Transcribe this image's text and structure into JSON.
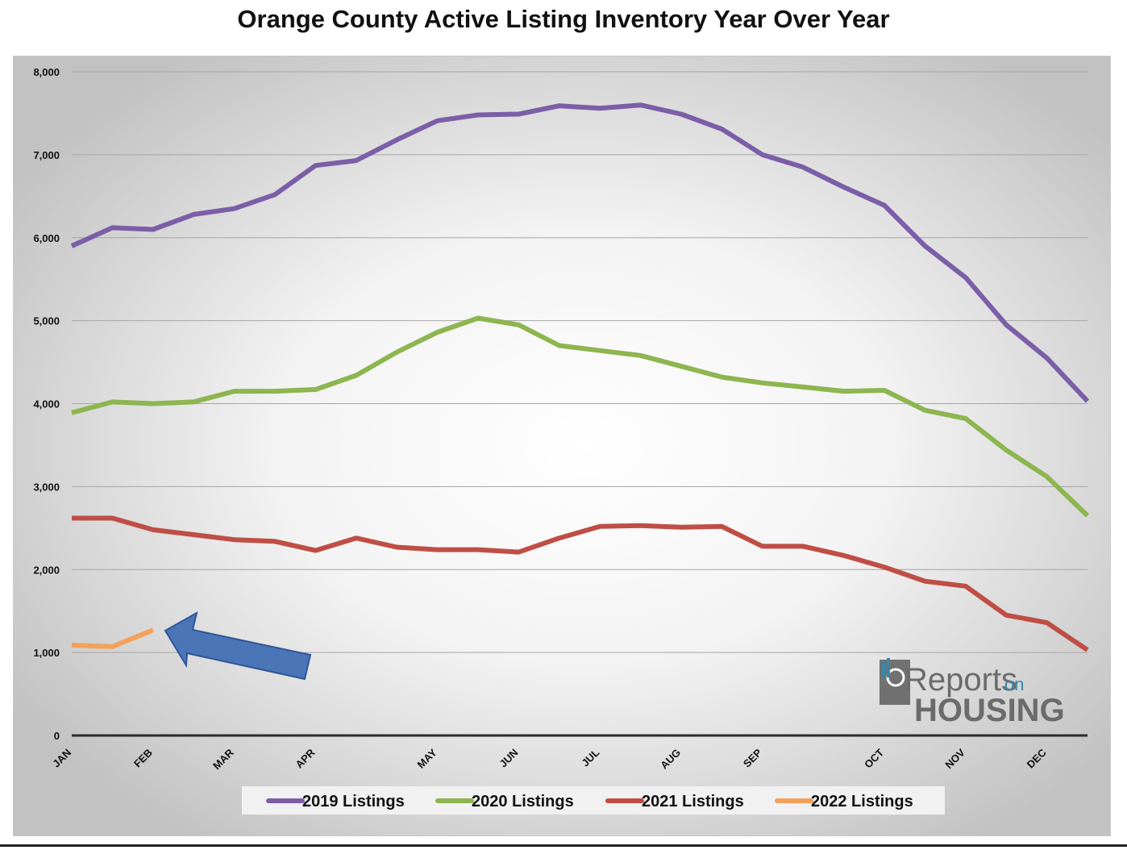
{
  "chart_data": {
    "type": "line",
    "title": "Orange County Active Listing Inventory Year Over Year",
    "xlabel": "",
    "ylabel": "",
    "ylim": [
      0,
      8000
    ],
    "yticks": [
      0,
      1000,
      2000,
      3000,
      4000,
      5000,
      6000,
      7000,
      8000
    ],
    "ytick_labels": [
      "0",
      "1,000",
      "2,000",
      "3,000",
      "4,000",
      "5,000",
      "6,000",
      "7,000",
      "8,000"
    ],
    "month_labels": [
      "JAN",
      "FEB",
      "MAR",
      "APR",
      "MAY",
      "JUN",
      "JUL",
      "AUG",
      "SEP",
      "OCT",
      "NOV",
      "DEC"
    ],
    "month_label_week_index": [
      0,
      2,
      4,
      6,
      9,
      11,
      13,
      15,
      17,
      20,
      22,
      24
    ],
    "x_weeks": [
      0,
      1,
      2,
      3,
      4,
      5,
      6,
      7,
      8,
      9,
      10,
      11,
      12,
      13,
      14,
      15,
      16,
      17,
      18,
      19,
      20,
      21,
      22,
      23,
      24,
      25
    ],
    "grid": true,
    "legend_position": "bottom",
    "series": [
      {
        "name": "2019 Listings",
        "color": "#7b5ea7",
        "values": [
          5900,
          6120,
          6100,
          6280,
          6350,
          6520,
          6870,
          6930,
          7180,
          7410,
          7480,
          7490,
          7590,
          7560,
          7600,
          7490,
          7310,
          7000,
          6850,
          6610,
          6390,
          5900,
          5520,
          4950,
          4550,
          4030
        ]
      },
      {
        "name": "2020 Listings",
        "color": "#8db550",
        "values": [
          3890,
          4020,
          4000,
          4020,
          4150,
          4150,
          4170,
          4340,
          4620,
          4860,
          5030,
          4950,
          4700,
          4640,
          4580,
          4450,
          4320,
          4250,
          4200,
          4150,
          4160,
          3920,
          3820,
          3440,
          3120,
          2650
        ]
      },
      {
        "name": "2021 Listings",
        "color": "#bf4e45",
        "values": [
          2620,
          2620,
          2480,
          2420,
          2360,
          2340,
          2230,
          2380,
          2270,
          2240,
          2240,
          2210,
          2380,
          2520,
          2530,
          2510,
          2520,
          2280,
          2280,
          2170,
          2030,
          1860,
          1800,
          1450,
          1360,
          1030
        ]
      },
      {
        "name": "2022 Listings",
        "color": "#f4a15a",
        "values": [
          1090,
          1070,
          1270
        ]
      }
    ],
    "annotation_arrow_color": "#4a76b8"
  },
  "logo": {
    "text_main": "Reports",
    "text_small": "on",
    "text_bottom": "HOUSING"
  }
}
